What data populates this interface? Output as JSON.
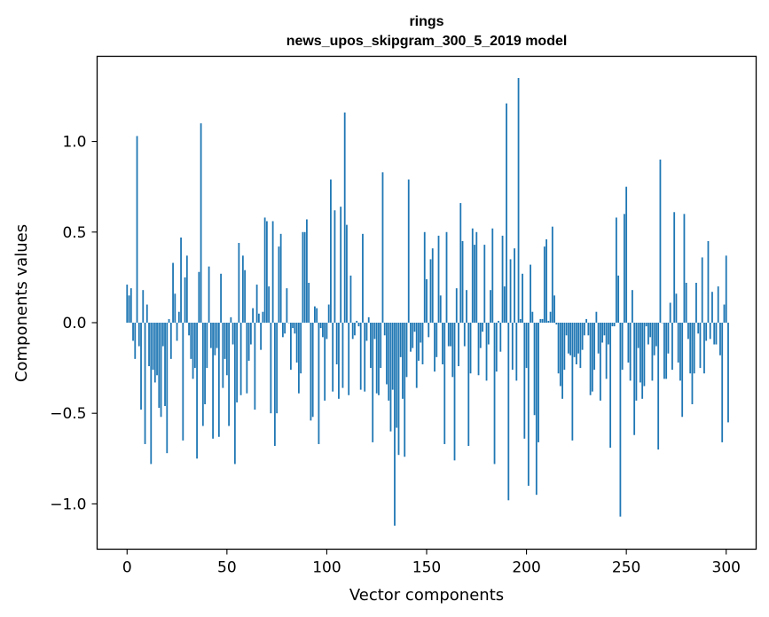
{
  "chart_data": {
    "type": "bar",
    "title": "rings",
    "subtitle": "news_upos_skipgram_300_5_2019 model",
    "xlabel": "Vector components",
    "ylabel": "Components values",
    "xlim": [
      -15,
      315
    ],
    "ylim": [
      -1.25,
      1.47
    ],
    "xticks": [
      0,
      50,
      100,
      150,
      200,
      250,
      300
    ],
    "xtick_labels": [
      "0",
      "50",
      "100",
      "150",
      "200",
      "250",
      "300"
    ],
    "yticks": [
      -1.0,
      -0.5,
      0.0,
      0.5,
      1.0
    ],
    "ytick_labels": [
      "−1.0",
      "−0.5",
      "0.0",
      "0.5",
      "1.0"
    ],
    "bar_color": "#1f77b4",
    "grid": false,
    "values": [
      0.21,
      0.15,
      0.19,
      -0.1,
      -0.2,
      1.03,
      -0.13,
      -0.48,
      0.18,
      -0.67,
      0.1,
      -0.24,
      -0.78,
      -0.26,
      -0.33,
      -0.29,
      -0.47,
      -0.52,
      -0.13,
      -0.46,
      -0.72,
      0.02,
      -0.2,
      0.33,
      0.16,
      -0.1,
      0.06,
      0.47,
      -0.65,
      0.25,
      0.37,
      -0.07,
      -0.2,
      -0.31,
      -0.25,
      -0.75,
      0.28,
      1.1,
      -0.57,
      -0.45,
      -0.25,
      0.31,
      -0.14,
      -0.64,
      -0.18,
      -0.14,
      -0.63,
      0.27,
      -0.36,
      -0.2,
      -0.29,
      -0.57,
      0.03,
      -0.12,
      -0.78,
      -0.44,
      0.44,
      -0.4,
      0.37,
      0.29,
      -0.39,
      -0.21,
      -0.12,
      0.08,
      -0.48,
      0.21,
      0.05,
      -0.15,
      0.06,
      0.58,
      0.56,
      0.2,
      -0.5,
      0.56,
      -0.68,
      -0.5,
      0.42,
      0.49,
      -0.08,
      -0.06,
      0.19,
      0.0,
      -0.26,
      -0.03,
      -0.06,
      -0.22,
      -0.39,
      -0.28,
      0.5,
      0.5,
      0.57,
      0.22,
      -0.54,
      -0.52,
      0.09,
      0.08,
      -0.67,
      -0.03,
      -0.08,
      -0.43,
      -0.09,
      0.1,
      0.79,
      -0.38,
      0.62,
      -0.23,
      -0.42,
      0.64,
      -0.36,
      1.16,
      0.54,
      -0.4,
      0.26,
      -0.09,
      -0.07,
      0.01,
      -0.02,
      -0.37,
      0.49,
      -0.38,
      -0.1,
      0.03,
      -0.25,
      -0.66,
      -0.09,
      -0.39,
      -0.4,
      -0.25,
      0.83,
      -0.07,
      -0.34,
      -0.43,
      -0.6,
      -0.37,
      -1.12,
      -0.58,
      -0.73,
      -0.19,
      -0.42,
      -0.74,
      -0.3,
      0.79,
      -0.16,
      -0.14,
      -0.05,
      -0.36,
      -0.21,
      -0.11,
      -0.23,
      0.5,
      0.24,
      -0.08,
      0.35,
      0.41,
      -0.27,
      -0.19,
      0.48,
      0.15,
      -0.23,
      -0.67,
      0.5,
      -0.13,
      -0.13,
      -0.3,
      -0.76,
      0.19,
      -0.24,
      0.66,
      0.45,
      -0.13,
      0.18,
      -0.68,
      -0.28,
      0.52,
      0.43,
      0.5,
      -0.29,
      -0.14,
      -0.05,
      0.43,
      -0.32,
      -0.12,
      0.18,
      0.52,
      -0.78,
      -0.27,
      0.01,
      -0.16,
      0.48,
      0.2,
      1.21,
      -0.98,
      0.35,
      -0.26,
      0.41,
      -0.32,
      1.35,
      0.02,
      0.27,
      -0.64,
      -0.25,
      -0.9,
      0.32,
      0.06,
      -0.51,
      -0.95,
      -0.66,
      0.02,
      0.02,
      0.42,
      0.46,
      0.01,
      0.06,
      0.53,
      0.15,
      -0.01,
      -0.28,
      -0.35,
      -0.42,
      -0.26,
      -0.07,
      -0.17,
      -0.18,
      -0.65,
      -0.19,
      -0.23,
      -0.17,
      -0.25,
      -0.15,
      -0.07,
      0.02,
      -0.07,
      -0.4,
      -0.38,
      -0.26,
      0.06,
      -0.17,
      -0.43,
      -0.11,
      -0.07,
      -0.31,
      -0.12,
      -0.69,
      -0.02,
      -0.02,
      0.58,
      0.26,
      -1.07,
      -0.26,
      0.6,
      0.75,
      -0.22,
      -0.32,
      0.18,
      -0.62,
      -0.43,
      -0.14,
      -0.33,
      -0.42,
      -0.35,
      -0.02,
      -0.12,
      -0.08,
      -0.32,
      -0.18,
      -0.13,
      -0.7,
      0.9,
      0.0,
      -0.31,
      -0.31,
      -0.17,
      0.11,
      -0.26,
      0.61,
      0.16,
      -0.22,
      -0.32,
      -0.52,
      0.6,
      0.22,
      -0.09,
      -0.28,
      -0.45,
      -0.28,
      0.22,
      -0.06,
      -0.25,
      0.36,
      -0.28,
      -0.1,
      0.45,
      -0.09,
      0.17,
      -0.12,
      -0.12,
      0.2,
      -0.18,
      -0.66,
      0.1,
      0.37,
      -0.55
    ]
  }
}
